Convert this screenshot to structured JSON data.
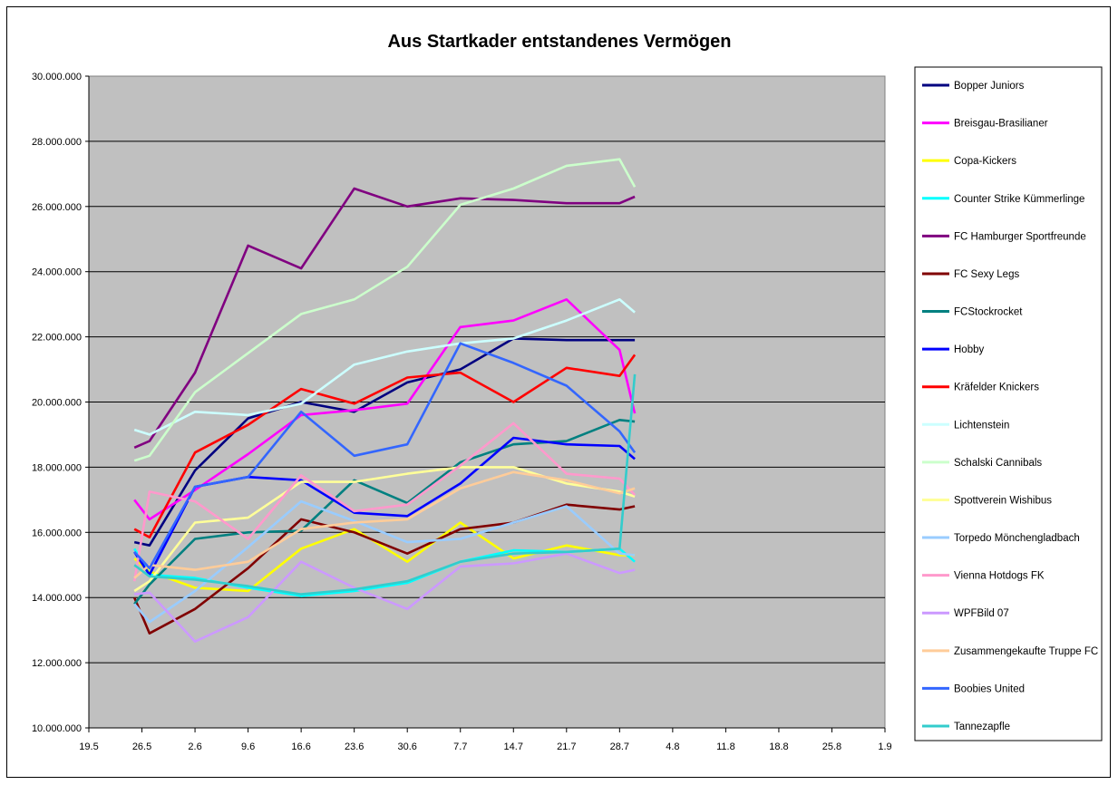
{
  "chart_data": {
    "type": "line",
    "title": "Aus Startkader entstandenes Vermögen",
    "xlabel": "",
    "ylabel": "",
    "ylim": [
      10000000,
      30000000
    ],
    "y_ticks": [
      10000000,
      12000000,
      14000000,
      16000000,
      18000000,
      20000000,
      22000000,
      24000000,
      26000000,
      28000000,
      30000000
    ],
    "y_tick_labels": [
      "10.000.000",
      "12.000.000",
      "14.000.000",
      "16.000.000",
      "18.000.000",
      "20.000.000",
      "22.000.000",
      "24.000.000",
      "26.000.000",
      "28.000.000",
      "30.000.000"
    ],
    "x_ticks": [
      0,
      7,
      14,
      21,
      28,
      35,
      42,
      49,
      56,
      63,
      70,
      77,
      84,
      91,
      98,
      105
    ],
    "x_tick_labels": [
      "19.5",
      "26.5",
      "2.6",
      "9.6",
      "16.6",
      "23.6",
      "30.6",
      "7.7",
      "14.7",
      "21.7",
      "28.7",
      "4.8",
      "11.8",
      "18.8",
      "25.8",
      "1.9"
    ],
    "xlim": [
      0,
      105
    ],
    "x": [
      6,
      8,
      14,
      21,
      28,
      35,
      42,
      49,
      56,
      63,
      70,
      72
    ],
    "grid": "horizontal",
    "plot_background": "#c0c0c0",
    "legend_position": "right",
    "series": [
      {
        "name": "Bopper Juniors",
        "color": "#000080",
        "values": [
          15700000,
          15600000,
          17900000,
          19500000,
          20000000,
          19700000,
          20600000,
          21000000,
          21950000,
          21900000,
          21900000,
          21900000
        ]
      },
      {
        "name": "Breisgau-Brasilianer",
        "color": "#ff00ff",
        "values": [
          17000000,
          16400000,
          17300000,
          18400000,
          19600000,
          19750000,
          19950000,
          22300000,
          22500000,
          23150000,
          21600000,
          19650000
        ]
      },
      {
        "name": "Copa-Kickers",
        "color": "#ffff00",
        "values": [
          15200000,
          14800000,
          14300000,
          14200000,
          15500000,
          16100000,
          15100000,
          16300000,
          15200000,
          15600000,
          15300000,
          15300000
        ]
      },
      {
        "name": "Counter Strike Kümmerlinge",
        "color": "#00ffff",
        "values": [
          15500000,
          14700000,
          14600000,
          14300000,
          14050000,
          14200000,
          14450000,
          15100000,
          15450000,
          15400000,
          15500000,
          15100000
        ]
      },
      {
        "name": "FC Hamburger Sportfreunde",
        "color": "#800080",
        "values": [
          18600000,
          18800000,
          20900000,
          24800000,
          24100000,
          26550000,
          26000000,
          26250000,
          26200000,
          26100000,
          26100000,
          26300000
        ]
      },
      {
        "name": "FC Sexy Legs",
        "color": "#800000",
        "values": [
          14000000,
          12900000,
          13650000,
          14900000,
          16400000,
          16000000,
          15350000,
          16100000,
          16300000,
          16850000,
          16700000,
          16800000
        ]
      },
      {
        "name": "FCStockrocket",
        "color": "#008080",
        "values": [
          13800000,
          14400000,
          15800000,
          16000000,
          16050000,
          17600000,
          16900000,
          18150000,
          18700000,
          18800000,
          19450000,
          19400000
        ]
      },
      {
        "name": "Hobby",
        "color": "#0000ff",
        "values": [
          15400000,
          14700000,
          17400000,
          17700000,
          17600000,
          16600000,
          16500000,
          17500000,
          18900000,
          18700000,
          18650000,
          18250000
        ]
      },
      {
        "name": "Kräfelder Knickers",
        "color": "#ff0000",
        "values": [
          16100000,
          15850000,
          18450000,
          19300000,
          20400000,
          19950000,
          20750000,
          20900000,
          20000000,
          21050000,
          20800000,
          21450000
        ]
      },
      {
        "name": "Lichtenstein",
        "color": "#ccffff",
        "values": [
          19150000,
          19000000,
          19700000,
          19600000,
          19950000,
          21150000,
          21550000,
          21800000,
          21950000,
          22500000,
          23150000,
          22750000
        ]
      },
      {
        "name": "Schalski Cannibals",
        "color": "#ccffcc",
        "values": [
          18200000,
          18350000,
          20300000,
          21500000,
          22700000,
          23150000,
          24150000,
          26050000,
          26550000,
          27250000,
          27450000,
          26600000
        ]
      },
      {
        "name": "Spottverein Wishibus",
        "color": "#ffff99",
        "values": [
          14200000,
          14500000,
          16300000,
          16450000,
          17550000,
          17550000,
          17800000,
          18000000,
          18000000,
          17500000,
          17250000,
          17100000
        ]
      },
      {
        "name": "Torpedo Mönchengladbach",
        "color": "#99ccff",
        "values": [
          13800000,
          13250000,
          14200000,
          15550000,
          16950000,
          16350000,
          15700000,
          15800000,
          16300000,
          16800000,
          15350000,
          15300000
        ]
      },
      {
        "name": "Vienna Hotdogs FK",
        "color": "#ff99cc",
        "values": [
          14500000,
          17250000,
          16950000,
          15800000,
          17750000,
          16650000,
          16850000,
          18050000,
          19350000,
          17800000,
          17650000,
          17150000
        ]
      },
      {
        "name": "WPFBild 07",
        "color": "#cc99ff",
        "values": [
          14100000,
          14150000,
          12650000,
          13400000,
          15100000,
          14300000,
          13650000,
          14950000,
          15050000,
          15350000,
          14750000,
          14850000
        ]
      },
      {
        "name": "Zusammengekaufte Truppe FC",
        "color": "#ffcc99",
        "values": [
          14600000,
          15000000,
          14850000,
          15100000,
          16100000,
          16300000,
          16400000,
          17350000,
          17850000,
          17600000,
          17200000,
          17350000
        ]
      },
      {
        "name": "Boobies United",
        "color": "#3366ff",
        "values": [
          15400000,
          14900000,
          17400000,
          17700000,
          19700000,
          18350000,
          18700000,
          21800000,
          21200000,
          20500000,
          19100000,
          18450000
        ]
      },
      {
        "name": "Tannezapfle",
        "color": "#33cccc",
        "values": [
          15000000,
          14650000,
          14550000,
          14350000,
          14100000,
          14250000,
          14500000,
          15100000,
          15350000,
          15400000,
          15500000,
          20850000
        ]
      }
    ]
  }
}
